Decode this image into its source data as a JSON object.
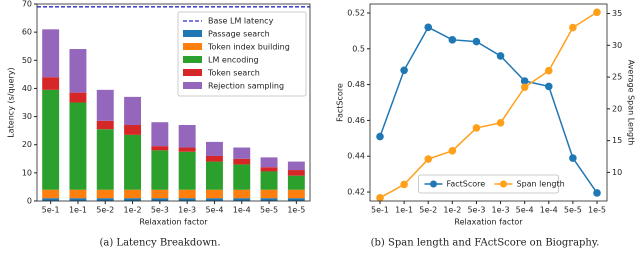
{
  "chart_data": [
    {
      "type": "stacked_bar",
      "caption": "(a) Latency Breakdown.",
      "x_label": "Relaxation factor",
      "y_label": "Latency (s/query)",
      "categories": [
        "5e-1",
        "1e-1",
        "5e-2",
        "1e-2",
        "5e-3",
        "1e-3",
        "5e-4",
        "1e-4",
        "5e-5",
        "1e-5"
      ],
      "series": [
        {
          "name": "Passage search",
          "color": "#1f77b4",
          "values": [
            1,
            1,
            1,
            1,
            1,
            1,
            1,
            1,
            1,
            1
          ]
        },
        {
          "name": "Token index building",
          "color": "#ff7f0e",
          "values": [
            3,
            3,
            3,
            3,
            3,
            3,
            3,
            3,
            3,
            3
          ]
        },
        {
          "name": "LM encoding",
          "color": "#2ca02c",
          "values": [
            35.5,
            31,
            21.5,
            19.5,
            14,
            13.5,
            10,
            9,
            6.5,
            5
          ]
        },
        {
          "name": "Token search",
          "color": "#d62728",
          "values": [
            4.5,
            3.5,
            3,
            3.5,
            1.5,
            1.5,
            2,
            2,
            1.5,
            2
          ]
        },
        {
          "name": "Rejection sampling",
          "color": "#9467bd",
          "values": [
            17,
            15.5,
            11,
            10,
            8.5,
            8,
            5,
            4,
            3.5,
            3
          ]
        }
      ],
      "reference_lines": [
        {
          "name": "Base LM latency",
          "value": 69,
          "color": "#2a2acc",
          "style": "dashed"
        }
      ],
      "ylim": [
        0,
        70
      ],
      "yticks": [
        0,
        10,
        20,
        30,
        40,
        50,
        60,
        70
      ],
      "legend": "upper right"
    },
    {
      "type": "line",
      "caption": "(b) Span length and FActScore on Biography.",
      "x_label": "Relaxation factor",
      "y_label": "FactScore",
      "y2_label": "Average Span Length",
      "categories": [
        "5e-1",
        "1e-1",
        "5e-2",
        "1e-2",
        "5e-3",
        "1e-3",
        "5e-4",
        "1e-4",
        "5e-5",
        "1e-5"
      ],
      "series": [
        {
          "name": "FactScore",
          "color": "#1f77b4",
          "values": [
            0.451,
            0.488,
            0.512,
            0.505,
            0.504,
            0.496,
            0.482,
            0.479,
            0.439,
            0.4195
          ]
        },
        {
          "name": "Span length",
          "color": "#ff9f1a",
          "axis": "y2",
          "values": [
            6,
            8.1,
            12.1,
            13.4,
            17,
            17.8,
            23.4,
            26,
            32.8,
            35.2
          ]
        }
      ],
      "ylim": [
        0.415,
        0.525
      ],
      "yticks": [
        0.42,
        0.44,
        0.46,
        0.48,
        0.5,
        0.52
      ],
      "y2lim": [
        5.5,
        36.5
      ],
      "y2ticks": [
        10,
        15,
        20,
        25,
        30,
        35
      ],
      "legend": "lower center"
    }
  ]
}
